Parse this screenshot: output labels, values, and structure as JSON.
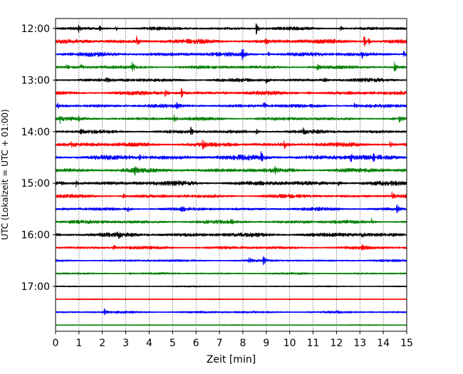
{
  "chart_data": {
    "type": "line",
    "title": "",
    "xlabel": "Zeit  [min]",
    "ylabel": "UTC (Lokalzeit = UTC + 01:00)",
    "xlim": [
      0,
      15
    ],
    "x_ticks": [
      0,
      1,
      2,
      3,
      4,
      5,
      6,
      7,
      8,
      9,
      10,
      11,
      12,
      13,
      14,
      15
    ],
    "x_tick_labels": [
      "0",
      "1",
      "2",
      "3",
      "4",
      "5",
      "6",
      "7",
      "8",
      "9",
      "10",
      "11",
      "12",
      "13",
      "14",
      "15"
    ],
    "y_tick_labels": [
      "12:00",
      "13:00",
      "14:00",
      "15:00",
      "16:00",
      "17:00"
    ],
    "y_tick_rows": [
      0,
      4,
      8,
      12,
      16,
      20
    ],
    "grid": "vertical dotted at each minute",
    "legend": "none",
    "traces": [
      {
        "start": "12:00",
        "color": "#000000",
        "noise": 0.5,
        "spikes": [
          [
            1.0,
            1.1
          ],
          [
            1.9,
            0.8
          ],
          [
            2.6,
            0.7
          ],
          [
            8.6,
            2.2
          ],
          [
            12.2,
            0.7
          ]
        ]
      },
      {
        "start": "12:15",
        "color": "#ff0000",
        "noise": 0.65,
        "spikes": [
          [
            3.5,
            2.2
          ],
          [
            6.3,
            0.7
          ],
          [
            9.0,
            0.6
          ],
          [
            13.2,
            2.4
          ],
          [
            13.4,
            1.0
          ]
        ]
      },
      {
        "start": "12:30",
        "color": "#0000ff",
        "noise": 0.65,
        "spikes": [
          [
            8.0,
            2.2
          ],
          [
            9.1,
            0.9
          ],
          [
            13.1,
            1.2
          ],
          [
            14.9,
            1.0
          ]
        ]
      },
      {
        "start": "12:45",
        "color": "#008000",
        "noise": 0.5,
        "spikes": [
          [
            0.5,
            0.8
          ],
          [
            1.1,
            1.0
          ],
          [
            3.3,
            1.8
          ],
          [
            11.2,
            0.8
          ],
          [
            14.5,
            2.0
          ]
        ]
      },
      {
        "start": "13:00",
        "color": "#000000",
        "noise": 0.55,
        "spikes": [
          [
            2.2,
            0.7
          ],
          [
            9.0,
            1.7
          ],
          [
            11.5,
            0.7
          ]
        ]
      },
      {
        "start": "13:15",
        "color": "#ff0000",
        "noise": 0.6,
        "spikes": [
          [
            4.7,
            1.2
          ],
          [
            5.4,
            1.9
          ],
          [
            7.2,
            0.8
          ],
          [
            10.8,
            0.7
          ]
        ]
      },
      {
        "start": "13:30",
        "color": "#0000ff",
        "noise": 0.55,
        "spikes": [
          [
            0.1,
            1.2
          ],
          [
            5.2,
            0.8
          ],
          [
            8.9,
            1.7
          ],
          [
            12.8,
            0.9
          ]
        ]
      },
      {
        "start": "13:45",
        "color": "#008000",
        "noise": 0.5,
        "spikes": [
          [
            0.2,
            1.4
          ],
          [
            1.0,
            0.7
          ],
          [
            5.1,
            1.2
          ],
          [
            14.7,
            1.4
          ]
        ]
      },
      {
        "start": "14:00",
        "color": "#000000",
        "noise": 0.55,
        "spikes": [
          [
            1.1,
            0.7
          ],
          [
            5.8,
            1.5
          ],
          [
            8.6,
            0.8
          ],
          [
            10.6,
            1.0
          ]
        ]
      },
      {
        "start": "14:15",
        "color": "#ff0000",
        "noise": 0.65,
        "spikes": [
          [
            0.7,
            1.2
          ],
          [
            6.3,
            1.3
          ],
          [
            9.8,
            1.6
          ],
          [
            14.3,
            1.3
          ]
        ]
      },
      {
        "start": "14:30",
        "color": "#0000ff",
        "noise": 0.75,
        "spikes": [
          [
            3.6,
            1.5
          ],
          [
            8.8,
            1.8
          ],
          [
            12.6,
            1.8
          ],
          [
            13.6,
            1.1
          ]
        ]
      },
      {
        "start": "14:45",
        "color": "#008000",
        "noise": 0.65,
        "spikes": [
          [
            3.4,
            1.3
          ],
          [
            9.4,
            1.1
          ],
          [
            13.4,
            1.0
          ]
        ]
      },
      {
        "start": "15:00",
        "color": "#000000",
        "noise": 0.7,
        "spikes": [
          [
            0.9,
            1.3
          ],
          [
            12.1,
            1.0
          ]
        ]
      },
      {
        "start": "15:15",
        "color": "#ff0000",
        "noise": 0.55,
        "spikes": [
          [
            2.9,
            0.8
          ],
          [
            14.4,
            1.5
          ]
        ]
      },
      {
        "start": "15:30",
        "color": "#0000ff",
        "noise": 0.5,
        "spikes": [
          [
            3.1,
            1.0
          ],
          [
            5.4,
            1.3
          ],
          [
            14.6,
            1.6
          ]
        ]
      },
      {
        "start": "15:45",
        "color": "#008000",
        "noise": 0.55,
        "spikes": [
          [
            7.5,
            0.8
          ],
          [
            13.5,
            1.2
          ]
        ]
      },
      {
        "start": "16:00",
        "color": "#000000",
        "noise": 0.65,
        "spikes": [
          [
            2.7,
            0.7
          ],
          [
            13.1,
            0.8
          ]
        ]
      },
      {
        "start": "16:15",
        "color": "#ff0000",
        "noise": 0.5,
        "spikes": [
          [
            2.5,
            1.0
          ],
          [
            13.1,
            0.8
          ]
        ]
      },
      {
        "start": "16:30",
        "color": "#0000ff",
        "noise": 0.35,
        "spikes": [
          [
            8.3,
            1.1
          ],
          [
            8.9,
            1.8
          ]
        ]
      },
      {
        "start": "16:45",
        "color": "#008000",
        "noise": 0.3,
        "spikes": [
          [
            3.2,
            0.6
          ]
        ]
      },
      {
        "start": "17:00",
        "color": "#000000",
        "noise": 0.2,
        "spikes": []
      },
      {
        "start": "17:15",
        "color": "#ff0000",
        "noise": 0.15,
        "spikes": []
      },
      {
        "start": "17:30",
        "color": "#0000ff",
        "noise": 0.35,
        "spikes": [
          [
            2.1,
            1.4
          ],
          [
            12.0,
            0.6
          ]
        ]
      },
      {
        "start": "17:45",
        "color": "#008000",
        "noise": 0.15,
        "spikes": []
      }
    ]
  }
}
